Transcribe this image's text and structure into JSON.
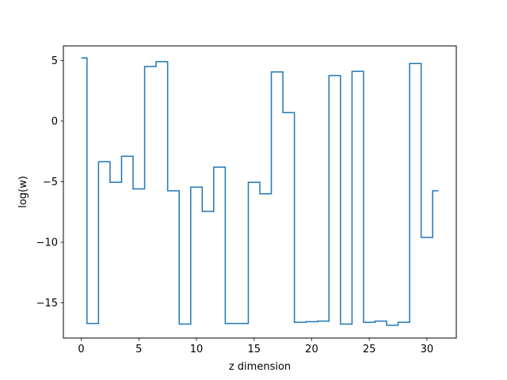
{
  "chart_data": {
    "type": "line",
    "drawstyle": "steps-mid",
    "title": "",
    "xlabel": "z dimension",
    "ylabel": "log(w)",
    "xlim": [
      -1.55,
      32.55
    ],
    "ylim": [
      -17.9,
      6.2
    ],
    "xticks": [
      0,
      5,
      10,
      15,
      20,
      25,
      30
    ],
    "yticks": [
      5,
      0,
      -5,
      -10,
      -15
    ],
    "ytick_labels": [
      "5",
      "0",
      "−5",
      "−10",
      "−15"
    ],
    "grid": false,
    "legend": false,
    "series": [
      {
        "color": "#1f77b4",
        "x": [
          0,
          1,
          2,
          3,
          4,
          5,
          6,
          7,
          8,
          9,
          10,
          11,
          12,
          13,
          14,
          15,
          16,
          17,
          18,
          19,
          20,
          21,
          22,
          23,
          24,
          25,
          26,
          27,
          28,
          29,
          30,
          31
        ],
        "y": [
          5.2,
          -16.7,
          -3.35,
          -5.05,
          -2.9,
          -5.6,
          4.5,
          4.9,
          -5.75,
          -16.75,
          -5.45,
          -7.45,
          -3.8,
          -16.7,
          -16.7,
          -5.05,
          -6.0,
          4.05,
          0.7,
          -16.6,
          -16.55,
          -16.5,
          3.75,
          -16.75,
          4.1,
          -16.6,
          -16.5,
          -16.85,
          -16.6,
          4.75,
          -9.6,
          -5.75
        ]
      }
    ]
  }
}
